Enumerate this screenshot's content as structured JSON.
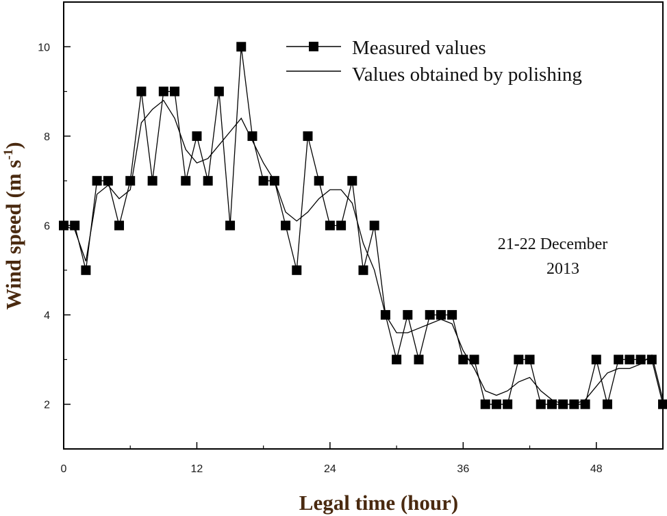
{
  "chart_data": {
    "type": "line",
    "title": "",
    "xlabel": "Legal time (hour)",
    "ylabel_main": "Wind speed (m s",
    "ylabel_sup": "-1",
    "ylabel_close": ")",
    "xlim": [
      0,
      54
    ],
    "ylim": [
      1,
      11
    ],
    "xticks": [
      0,
      12,
      24,
      36,
      48
    ],
    "xtick_labels": [
      "0",
      "12",
      "24",
      "36",
      "48"
    ],
    "yticks": [
      2,
      4,
      6,
      8,
      10
    ],
    "ytick_labels": [
      "2",
      "4",
      "6",
      "8",
      "10"
    ],
    "grid": false,
    "legend_position": "top-right",
    "annotation_lines": [
      "21-22 December",
      "2013"
    ],
    "series": [
      {
        "name": "Measured values",
        "marker": "square",
        "x": [
          0,
          1,
          2,
          3,
          4,
          5,
          6,
          7,
          8,
          9,
          10,
          11,
          12,
          13,
          14,
          15,
          16,
          17,
          18,
          19,
          20,
          21,
          22,
          23,
          24,
          25,
          26,
          27,
          28,
          29,
          30,
          31,
          32,
          33,
          34,
          35,
          36,
          37,
          38,
          39,
          40,
          41,
          42,
          43,
          44,
          45,
          46,
          47,
          48,
          49,
          50,
          51,
          52,
          53,
          54
        ],
        "y": [
          6,
          6,
          5,
          7,
          7,
          6,
          7,
          9,
          7,
          9,
          9,
          7,
          8,
          7,
          9,
          6,
          10,
          8,
          7,
          7,
          6,
          5,
          8,
          7,
          6,
          6,
          7,
          5,
          6,
          4,
          3,
          4,
          3,
          4,
          4,
          4,
          3,
          3,
          2,
          2,
          2,
          3,
          3,
          2,
          2,
          2,
          2,
          2,
          3,
          2,
          3,
          3,
          3,
          3,
          2
        ]
      },
      {
        "name": "Values obtained by polishing",
        "marker": "none",
        "x": [
          0,
          1,
          2,
          3,
          4,
          5,
          6,
          7,
          8,
          9,
          10,
          11,
          12,
          13,
          14,
          15,
          16,
          17,
          18,
          19,
          20,
          21,
          22,
          23,
          24,
          25,
          26,
          27,
          28,
          29,
          30,
          31,
          32,
          33,
          34,
          35,
          36,
          37,
          38,
          39,
          40,
          41,
          42,
          43,
          44,
          45,
          46,
          47,
          48,
          49,
          50,
          51,
          52,
          53,
          54
        ],
        "y": [
          6.0,
          5.9,
          5.2,
          6.7,
          6.9,
          6.6,
          6.8,
          8.3,
          8.6,
          8.8,
          8.4,
          7.7,
          7.4,
          7.5,
          7.8,
          8.1,
          8.4,
          7.9,
          7.4,
          7.0,
          6.3,
          6.1,
          6.3,
          6.6,
          6.8,
          6.8,
          6.5,
          5.6,
          5.0,
          4.0,
          3.6,
          3.6,
          3.7,
          3.8,
          3.9,
          3.8,
          3.2,
          2.8,
          2.3,
          2.2,
          2.3,
          2.5,
          2.6,
          2.3,
          2.1,
          2.0,
          2.0,
          2.1,
          2.4,
          2.7,
          2.8,
          2.8,
          2.9,
          3.1,
          2.1
        ]
      }
    ]
  }
}
